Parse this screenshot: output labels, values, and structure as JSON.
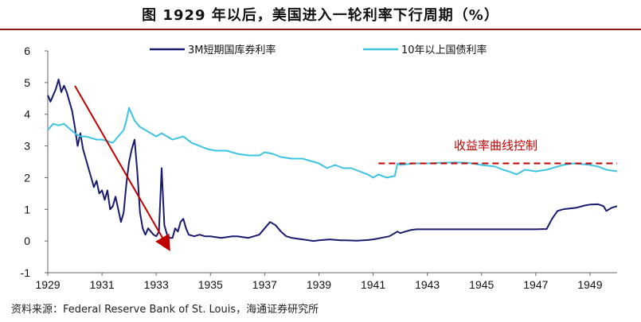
{
  "title": "图  1929 年以后，美国进入一轮利率下行周期（%）",
  "source": "资料来源：Federal Reserve Bank of St. Louis，海通证券研究所",
  "chart_data": {
    "type": "line",
    "x_range": [
      1929,
      1950
    ],
    "ylim": [
      -1,
      6
    ],
    "x_ticks": [
      "1929",
      "1931",
      "1933",
      "1935",
      "1937",
      "1939",
      "1941",
      "1943",
      "1945",
      "1947",
      "1949"
    ],
    "y_ticks": [
      "-1",
      "0",
      "1",
      "2",
      "3",
      "4",
      "5",
      "6"
    ],
    "grid": false,
    "legend_position": "top",
    "series": [
      {
        "name": "3M短期国库券利率",
        "color": "#1a1a6e",
        "points": [
          [
            1929.0,
            4.6
          ],
          [
            1929.1,
            4.4
          ],
          [
            1929.2,
            4.6
          ],
          [
            1929.3,
            4.8
          ],
          [
            1929.4,
            5.1
          ],
          [
            1929.5,
            4.7
          ],
          [
            1929.6,
            4.9
          ],
          [
            1929.7,
            4.7
          ],
          [
            1929.8,
            4.4
          ],
          [
            1929.9,
            4.1
          ],
          [
            1930.0,
            3.6
          ],
          [
            1930.1,
            3.0
          ],
          [
            1930.2,
            3.4
          ],
          [
            1930.3,
            2.9
          ],
          [
            1930.4,
            2.6
          ],
          [
            1930.5,
            2.3
          ],
          [
            1930.6,
            2.0
          ],
          [
            1930.7,
            1.7
          ],
          [
            1930.8,
            1.9
          ],
          [
            1930.9,
            1.5
          ],
          [
            1931.0,
            1.6
          ],
          [
            1931.1,
            1.3
          ],
          [
            1931.2,
            1.6
          ],
          [
            1931.3,
            1.0
          ],
          [
            1931.4,
            1.1
          ],
          [
            1931.5,
            1.4
          ],
          [
            1931.6,
            1.0
          ],
          [
            1931.7,
            0.6
          ],
          [
            1931.8,
            0.9
          ],
          [
            1931.9,
            1.8
          ],
          [
            1932.0,
            2.5
          ],
          [
            1932.1,
            2.9
          ],
          [
            1932.2,
            3.2
          ],
          [
            1932.3,
            2.2
          ],
          [
            1932.4,
            0.9
          ],
          [
            1932.5,
            0.4
          ],
          [
            1932.6,
            0.2
          ],
          [
            1932.7,
            0.4
          ],
          [
            1932.8,
            0.3
          ],
          [
            1932.9,
            0.2
          ],
          [
            1933.0,
            0.15
          ],
          [
            1933.1,
            0.3
          ],
          [
            1933.2,
            2.3
          ],
          [
            1933.3,
            0.5
          ],
          [
            1933.4,
            0.2
          ],
          [
            1933.5,
            0.1
          ],
          [
            1933.6,
            0.1
          ],
          [
            1933.7,
            0.4
          ],
          [
            1933.8,
            0.3
          ],
          [
            1933.9,
            0.6
          ],
          [
            1934.0,
            0.7
          ],
          [
            1934.1,
            0.4
          ],
          [
            1934.2,
            0.2
          ],
          [
            1934.4,
            0.15
          ],
          [
            1934.6,
            0.2
          ],
          [
            1934.8,
            0.15
          ],
          [
            1935.0,
            0.15
          ],
          [
            1935.4,
            0.1
          ],
          [
            1935.8,
            0.15
          ],
          [
            1936.0,
            0.15
          ],
          [
            1936.4,
            0.1
          ],
          [
            1936.8,
            0.2
          ],
          [
            1937.0,
            0.4
          ],
          [
            1937.2,
            0.6
          ],
          [
            1937.4,
            0.5
          ],
          [
            1937.6,
            0.3
          ],
          [
            1937.8,
            0.15
          ],
          [
            1938.0,
            0.1
          ],
          [
            1938.4,
            0.05
          ],
          [
            1938.8,
            0.0
          ],
          [
            1939.0,
            0.02
          ],
          [
            1939.4,
            0.05
          ],
          [
            1939.8,
            0.02
          ],
          [
            1940.0,
            0.02
          ],
          [
            1940.4,
            0.01
          ],
          [
            1940.8,
            0.03
          ],
          [
            1941.0,
            0.05
          ],
          [
            1941.3,
            0.1
          ],
          [
            1941.6,
            0.15
          ],
          [
            1941.9,
            0.3
          ],
          [
            1942.0,
            0.25
          ],
          [
            1942.2,
            0.3
          ],
          [
            1942.4,
            0.35
          ],
          [
            1942.6,
            0.37
          ],
          [
            1943.0,
            0.37
          ],
          [
            1944.0,
            0.37
          ],
          [
            1945.0,
            0.37
          ],
          [
            1946.0,
            0.37
          ],
          [
            1947.0,
            0.37
          ],
          [
            1947.4,
            0.38
          ],
          [
            1947.6,
            0.7
          ],
          [
            1947.8,
            0.95
          ],
          [
            1948.0,
            1.0
          ],
          [
            1948.5,
            1.05
          ],
          [
            1948.8,
            1.12
          ],
          [
            1949.0,
            1.15
          ],
          [
            1949.3,
            1.16
          ],
          [
            1949.5,
            1.1
          ],
          [
            1949.6,
            0.95
          ],
          [
            1949.8,
            1.05
          ],
          [
            1950.0,
            1.1
          ]
        ]
      },
      {
        "name": "10年以上国债利率",
        "color": "#3ec3e0",
        "points": [
          [
            1929.0,
            3.5
          ],
          [
            1929.1,
            3.6
          ],
          [
            1929.2,
            3.7
          ],
          [
            1929.4,
            3.65
          ],
          [
            1929.6,
            3.7
          ],
          [
            1929.8,
            3.55
          ],
          [
            1930.0,
            3.4
          ],
          [
            1930.2,
            3.3
          ],
          [
            1930.4,
            3.3
          ],
          [
            1930.6,
            3.25
          ],
          [
            1930.8,
            3.2
          ],
          [
            1931.0,
            3.2
          ],
          [
            1931.2,
            3.15
          ],
          [
            1931.4,
            3.1
          ],
          [
            1931.6,
            3.3
          ],
          [
            1931.8,
            3.5
          ],
          [
            1931.9,
            3.8
          ],
          [
            1932.0,
            4.2
          ],
          [
            1932.1,
            4.0
          ],
          [
            1932.2,
            3.8
          ],
          [
            1932.4,
            3.6
          ],
          [
            1932.6,
            3.5
          ],
          [
            1932.8,
            3.4
          ],
          [
            1933.0,
            3.3
          ],
          [
            1933.2,
            3.4
          ],
          [
            1933.4,
            3.3
          ],
          [
            1933.6,
            3.2
          ],
          [
            1933.8,
            3.25
          ],
          [
            1934.0,
            3.3
          ],
          [
            1934.3,
            3.1
          ],
          [
            1934.6,
            3.0
          ],
          [
            1934.9,
            2.9
          ],
          [
            1935.2,
            2.85
          ],
          [
            1935.6,
            2.85
          ],
          [
            1936.0,
            2.75
          ],
          [
            1936.4,
            2.7
          ],
          [
            1936.8,
            2.7
          ],
          [
            1937.0,
            2.8
          ],
          [
            1937.3,
            2.75
          ],
          [
            1937.6,
            2.65
          ],
          [
            1938.0,
            2.6
          ],
          [
            1938.4,
            2.6
          ],
          [
            1938.8,
            2.5
          ],
          [
            1939.0,
            2.45
          ],
          [
            1939.3,
            2.3
          ],
          [
            1939.6,
            2.4
          ],
          [
            1939.9,
            2.3
          ],
          [
            1940.2,
            2.3
          ],
          [
            1940.5,
            2.2
          ],
          [
            1940.8,
            2.1
          ],
          [
            1941.0,
            2.0
          ],
          [
            1941.2,
            2.1
          ],
          [
            1941.5,
            2.0
          ],
          [
            1941.8,
            2.05
          ],
          [
            1941.9,
            2.45
          ],
          [
            1942.0,
            2.4
          ],
          [
            1942.5,
            2.45
          ],
          [
            1943.0,
            2.45
          ],
          [
            1943.5,
            2.47
          ],
          [
            1944.0,
            2.48
          ],
          [
            1944.5,
            2.47
          ],
          [
            1945.0,
            2.4
          ],
          [
            1945.5,
            2.35
          ],
          [
            1945.8,
            2.25
          ],
          [
            1946.0,
            2.2
          ],
          [
            1946.3,
            2.1
          ],
          [
            1946.6,
            2.25
          ],
          [
            1947.0,
            2.2
          ],
          [
            1947.4,
            2.25
          ],
          [
            1947.8,
            2.35
          ],
          [
            1948.0,
            2.4
          ],
          [
            1948.4,
            2.45
          ],
          [
            1948.8,
            2.42
          ],
          [
            1949.0,
            2.4
          ],
          [
            1949.3,
            2.35
          ],
          [
            1949.6,
            2.25
          ],
          [
            1950.0,
            2.2
          ]
        ]
      }
    ],
    "annotations": {
      "control_label": "收益率曲线控制",
      "control_level": 2.45,
      "control_x_range": [
        1941.2,
        1950.0
      ],
      "arrow_from": [
        1930.0,
        4.9
      ],
      "arrow_to": [
        1933.4,
        -0.15
      ]
    }
  }
}
